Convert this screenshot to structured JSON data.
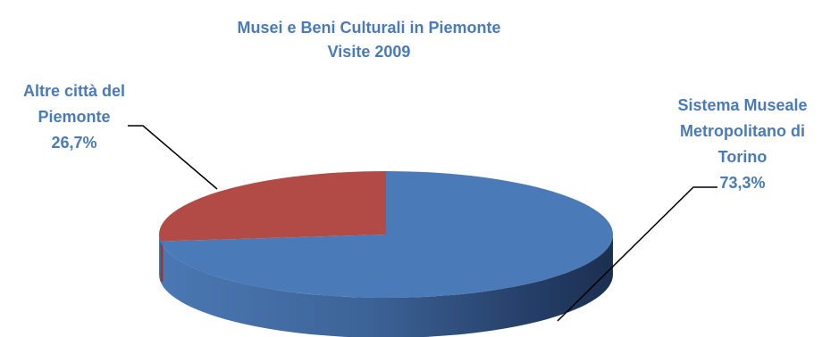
{
  "chart_data": {
    "type": "pie",
    "title_line1": "Musei e Beni Culturali in Piemonte",
    "title_line2": "Visite 2009",
    "slices": [
      {
        "name_lines": [
          "Sistema Museale",
          "Metropolitano di",
          "Torino"
        ],
        "value": 73.3,
        "label": "73,3%",
        "color": "#4a7ab8"
      },
      {
        "name_lines": [
          "Altre città del",
          "Piemonte"
        ],
        "value": 26.7,
        "label": "26,7%",
        "color": "#b24a46"
      }
    ]
  }
}
